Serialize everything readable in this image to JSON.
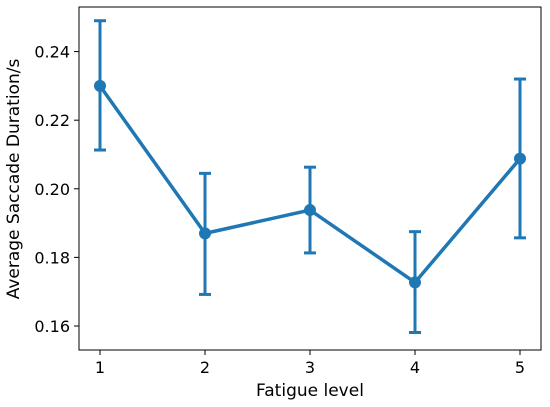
{
  "chart_data": {
    "type": "line",
    "title": "",
    "xlabel": "Fatigue level",
    "ylabel": "Average Saccade Duration/s",
    "x": [
      1,
      2,
      3,
      4,
      5
    ],
    "xticks": [
      "1",
      "2",
      "3",
      "4",
      "5"
    ],
    "xlim": [
      0.8,
      5.2
    ],
    "ylim": [
      0.153,
      0.253
    ],
    "yticks": [
      "0.16",
      "0.18",
      "0.20",
      "0.22",
      "0.24"
    ],
    "grid": false,
    "series": [
      {
        "color": "#1f77b4",
        "values": [
          0.23,
          0.187,
          0.1938,
          0.1727,
          0.2088
        ],
        "error_low": [
          0.2113,
          0.1692,
          0.1813,
          0.1581,
          0.1857
        ],
        "error_high": [
          0.249,
          0.2045,
          0.2063,
          0.1875,
          0.232
        ]
      }
    ]
  }
}
